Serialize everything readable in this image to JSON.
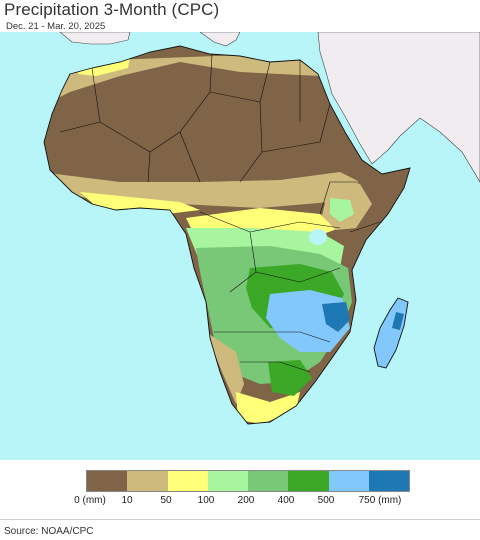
{
  "title": "Precipitation 3-Month (CPC)",
  "subtitle": "Dec. 21 - Mar. 20, 2025",
  "legend": {
    "colors": [
      "#7f6447",
      "#cfba7e",
      "#ffff78",
      "#a8f5a0",
      "#78c878",
      "#3ca828",
      "#82c8fa",
      "#1e78b4"
    ],
    "labels": [
      "0 (mm)",
      "10",
      "50",
      "100",
      "200",
      "400",
      "500",
      "750 (mm)"
    ]
  },
  "map": {
    "ocean_color": "#b8f5f8",
    "non_africa_land_color": "#f0ecf0"
  },
  "source": "Source: NOAA/CPC"
}
